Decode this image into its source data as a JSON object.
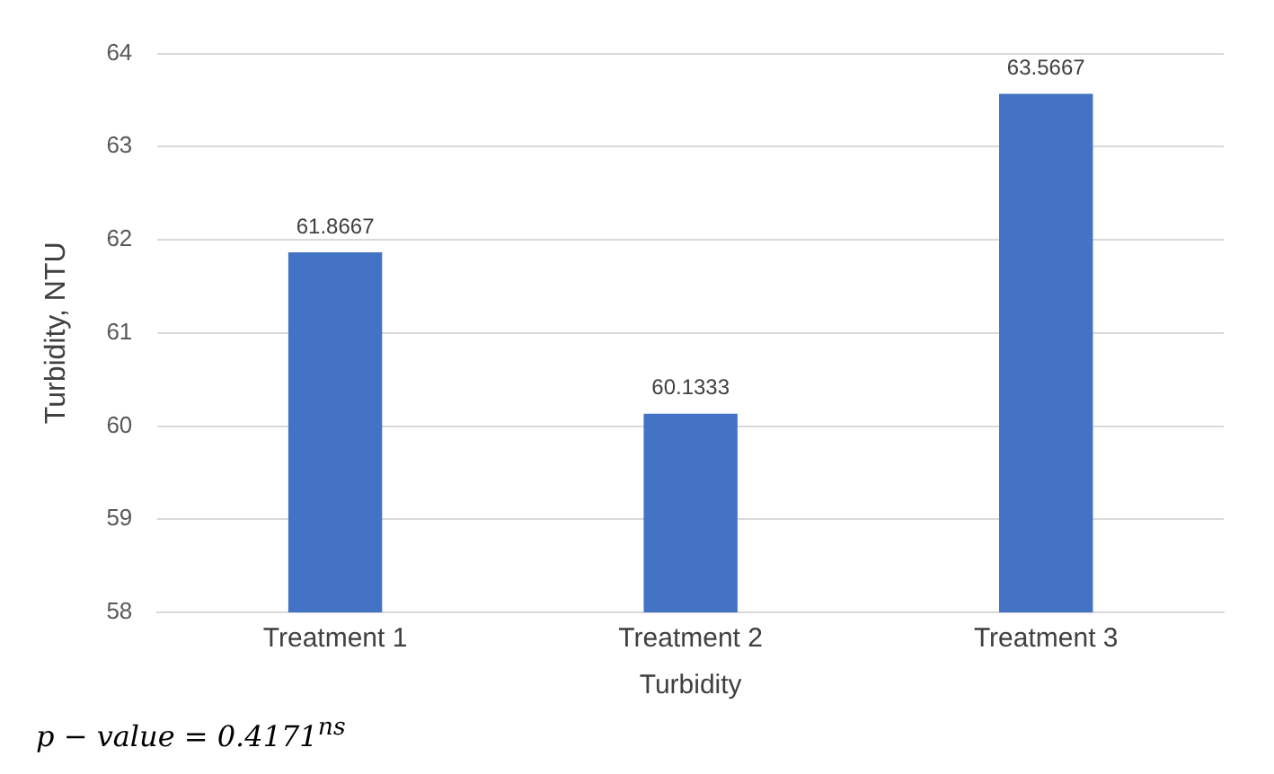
{
  "chart_data": {
    "type": "bar",
    "xlabel": "Turbidity",
    "ylabel": "Turbidity, NTU",
    "categories": [
      "Treatment 1",
      "Treatment 2",
      "Treatment 3"
    ],
    "values": [
      61.8667,
      60.1333,
      63.5667
    ],
    "color": "#4472c4",
    "ylim": [
      58,
      64
    ],
    "yticks": [
      58,
      59,
      60,
      61,
      62,
      63,
      64
    ],
    "grid": "y",
    "legend": false,
    "data_labels": true,
    "annotations": [
      "p − value = 0.4171$^{ns}$"
    ]
  }
}
